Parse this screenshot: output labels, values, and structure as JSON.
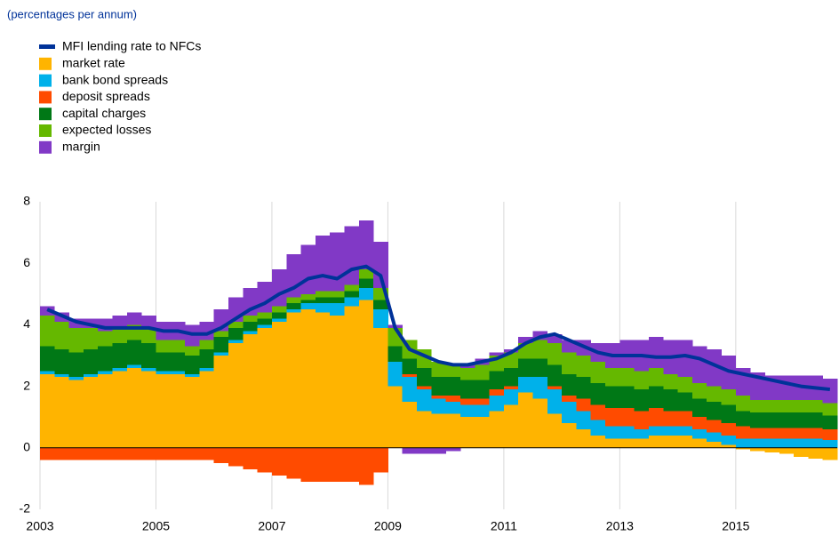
{
  "chart_data": {
    "type": "stacked-step-area",
    "subtitle": "(percentages per annum)",
    "x": [
      2003,
      2003.25,
      2003.5,
      2003.75,
      2004,
      2004.25,
      2004.5,
      2004.75,
      2005,
      2005.25,
      2005.5,
      2005.75,
      2006,
      2006.25,
      2006.5,
      2006.75,
      2007,
      2007.25,
      2007.5,
      2007.75,
      2008,
      2008.25,
      2008.5,
      2008.75,
      2009,
      2009.25,
      2009.5,
      2009.75,
      2010,
      2010.25,
      2010.5,
      2010.75,
      2011,
      2011.25,
      2011.5,
      2011.75,
      2012,
      2012.25,
      2012.5,
      2012.75,
      2013,
      2013.25,
      2013.5,
      2013.75,
      2014,
      2014.25,
      2014.5,
      2014.75,
      2015,
      2015.25,
      2015.5,
      2015.75,
      2016,
      2016.25,
      2016.5
    ],
    "line_series": {
      "name": "MFI lending rate to NFCs",
      "color": "#003299",
      "values": [
        4.5,
        4.3,
        4.1,
        4.0,
        3.9,
        3.9,
        3.9,
        3.9,
        3.8,
        3.8,
        3.7,
        3.7,
        3.9,
        4.2,
        4.5,
        4.7,
        5.0,
        5.2,
        5.5,
        5.6,
        5.5,
        5.8,
        5.9,
        5.6,
        3.9,
        3.2,
        3.0,
        2.8,
        2.7,
        2.7,
        2.8,
        2.9,
        3.1,
        3.4,
        3.6,
        3.7,
        3.5,
        3.3,
        3.1,
        3.0,
        3.0,
        3.0,
        2.95,
        2.95,
        3.0,
        2.9,
        2.7,
        2.5,
        2.4,
        2.3,
        2.2,
        2.1,
        2.0,
        1.95,
        1.9
      ]
    },
    "series": [
      {
        "name": "market rate",
        "color": "#ffb400",
        "values": [
          2.4,
          2.3,
          2.2,
          2.3,
          2.4,
          2.5,
          2.6,
          2.5,
          2.4,
          2.4,
          2.3,
          2.5,
          3.0,
          3.4,
          3.7,
          3.9,
          4.1,
          4.4,
          4.5,
          4.4,
          4.3,
          4.6,
          4.8,
          3.9,
          2.0,
          1.5,
          1.2,
          1.1,
          1.1,
          1.0,
          1.0,
          1.2,
          1.4,
          1.8,
          1.6,
          1.1,
          0.8,
          0.6,
          0.4,
          0.3,
          0.3,
          0.3,
          0.4,
          0.4,
          0.4,
          0.3,
          0.2,
          0.1,
          -0.05,
          -0.1,
          -0.15,
          -0.2,
          -0.3,
          -0.35,
          -0.4
        ]
      },
      {
        "name": "bank bond spreads",
        "color": "#00b1ea",
        "values": [
          0.1,
          0.1,
          0.1,
          0.1,
          0.1,
          0.1,
          0.1,
          0.1,
          0.1,
          0.1,
          0.1,
          0.1,
          0.1,
          0.1,
          0.1,
          0.1,
          0.1,
          0.1,
          0.2,
          0.3,
          0.4,
          0.3,
          0.4,
          0.6,
          0.8,
          0.8,
          0.7,
          0.5,
          0.4,
          0.4,
          0.4,
          0.5,
          0.5,
          0.5,
          0.7,
          0.8,
          0.7,
          0.6,
          0.5,
          0.4,
          0.4,
          0.3,
          0.3,
          0.3,
          0.3,
          0.3,
          0.3,
          0.3,
          0.3,
          0.3,
          0.3,
          0.3,
          0.3,
          0.3,
          0.25
        ]
      },
      {
        "name": "deposit spreads",
        "color": "#ff4b00",
        "values": [
          -0.4,
          -0.4,
          -0.4,
          -0.4,
          -0.4,
          -0.4,
          -0.4,
          -0.4,
          -0.4,
          -0.4,
          -0.4,
          -0.4,
          -0.5,
          -0.6,
          -0.7,
          -0.8,
          -0.9,
          -1.0,
          -1.1,
          -1.1,
          -1.1,
          -1.1,
          -1.2,
          -0.8,
          0.0,
          0.1,
          0.1,
          0.1,
          0.2,
          0.2,
          0.2,
          0.2,
          0.1,
          0.0,
          0.0,
          0.1,
          0.2,
          0.4,
          0.5,
          0.6,
          0.6,
          0.6,
          0.6,
          0.5,
          0.5,
          0.4,
          0.4,
          0.4,
          0.4,
          0.35,
          0.35,
          0.35,
          0.35,
          0.35,
          0.35
        ]
      },
      {
        "name": "capital charges",
        "color": "#007816",
        "values": [
          0.8,
          0.8,
          0.8,
          0.8,
          0.8,
          0.8,
          0.8,
          0.8,
          0.6,
          0.6,
          0.6,
          0.6,
          0.5,
          0.4,
          0.3,
          0.2,
          0.2,
          0.2,
          0.1,
          0.2,
          0.2,
          0.2,
          0.3,
          0.3,
          0.5,
          0.5,
          0.6,
          0.6,
          0.6,
          0.6,
          0.6,
          0.6,
          0.6,
          0.6,
          0.6,
          0.7,
          0.7,
          0.7,
          0.7,
          0.7,
          0.7,
          0.7,
          0.7,
          0.7,
          0.6,
          0.6,
          0.6,
          0.6,
          0.5,
          0.5,
          0.5,
          0.5,
          0.5,
          0.5,
          0.45
        ]
      },
      {
        "name": "expected losses",
        "color": "#65b800",
        "values": [
          1.0,
          0.9,
          0.8,
          0.7,
          0.5,
          0.5,
          0.5,
          0.5,
          0.4,
          0.4,
          0.3,
          0.3,
          0.2,
          0.2,
          0.2,
          0.2,
          0.2,
          0.2,
          0.2,
          0.2,
          0.2,
          0.2,
          0.3,
          0.4,
          0.6,
          0.6,
          0.6,
          0.5,
          0.4,
          0.4,
          0.5,
          0.5,
          0.5,
          0.5,
          0.6,
          0.7,
          0.7,
          0.7,
          0.7,
          0.6,
          0.6,
          0.6,
          0.6,
          0.5,
          0.5,
          0.5,
          0.5,
          0.5,
          0.5,
          0.4,
          0.4,
          0.4,
          0.4,
          0.4,
          0.4
        ]
      },
      {
        "name": "margin",
        "color": "#8139c6",
        "values": [
          0.3,
          0.3,
          0.3,
          0.3,
          0.4,
          0.4,
          0.4,
          0.4,
          0.6,
          0.6,
          0.7,
          0.6,
          0.7,
          0.8,
          0.9,
          1.0,
          1.2,
          1.4,
          1.6,
          1.8,
          1.9,
          1.9,
          1.6,
          1.5,
          0.1,
          -0.2,
          -0.2,
          -0.2,
          -0.1,
          0.1,
          0.2,
          0.1,
          0.1,
          0.2,
          0.3,
          0.3,
          0.4,
          0.5,
          0.6,
          0.8,
          0.9,
          1.0,
          1.0,
          1.1,
          1.2,
          1.2,
          1.2,
          1.1,
          0.9,
          0.9,
          0.8,
          0.8,
          0.8,
          0.8,
          0.8
        ]
      }
    ],
    "xlim": [
      2003,
      2016.75
    ],
    "xticks": [
      2003,
      2005,
      2007,
      2009,
      2011,
      2013,
      2015
    ],
    "ylim": [
      -2,
      8
    ],
    "yticks": [
      -2,
      0,
      2,
      4,
      6,
      8
    ],
    "grid": true
  }
}
